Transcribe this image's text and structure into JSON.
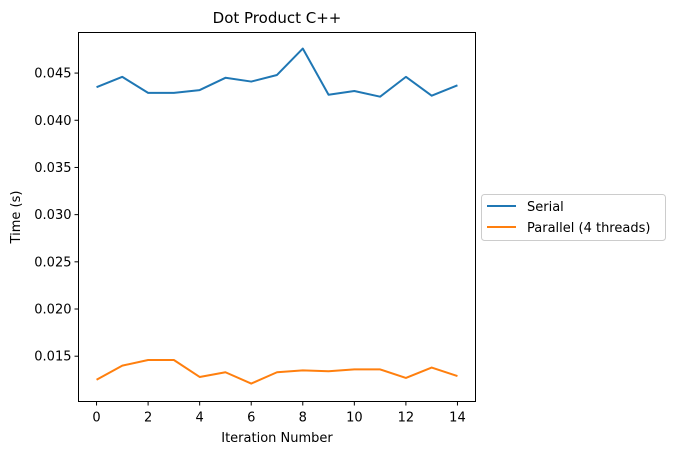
{
  "chart_data": {
    "type": "line",
    "title": "Dot Product C++",
    "xlabel": "Iteration Number",
    "ylabel": "Time (s)",
    "x": [
      0,
      1,
      2,
      3,
      4,
      5,
      6,
      7,
      8,
      9,
      10,
      11,
      12,
      13,
      14
    ],
    "xticks": [
      0,
      2,
      4,
      6,
      8,
      10,
      12,
      14
    ],
    "xtick_labels": [
      "0",
      "2",
      "4",
      "6",
      "8",
      "10",
      "12",
      "14"
    ],
    "yticks": [
      0.015,
      0.02,
      0.025,
      0.03,
      0.035,
      0.04,
      0.045
    ],
    "ytick_labels": [
      "0.015",
      "0.020",
      "0.025",
      "0.030",
      "0.035",
      "0.040",
      "0.045"
    ],
    "xlim": [
      -0.7,
      14.7
    ],
    "ylim": [
      0.0102,
      0.0493
    ],
    "grid": false,
    "legend_position": "outside-right",
    "series": [
      {
        "name": "Serial",
        "color": "#1f77b4",
        "values": [
          0.0435,
          0.0446,
          0.0429,
          0.0429,
          0.0432,
          0.0445,
          0.0441,
          0.0448,
          0.0476,
          0.0427,
          0.0431,
          0.0425,
          0.0446,
          0.0426,
          0.0437
        ]
      },
      {
        "name": "Parallel (4 threads)",
        "color": "#ff7f0e",
        "values": [
          0.0125,
          0.014,
          0.0146,
          0.0146,
          0.0128,
          0.0133,
          0.0121,
          0.0133,
          0.0135,
          0.0134,
          0.0136,
          0.0136,
          0.0127,
          0.0138,
          0.0129
        ]
      }
    ]
  }
}
